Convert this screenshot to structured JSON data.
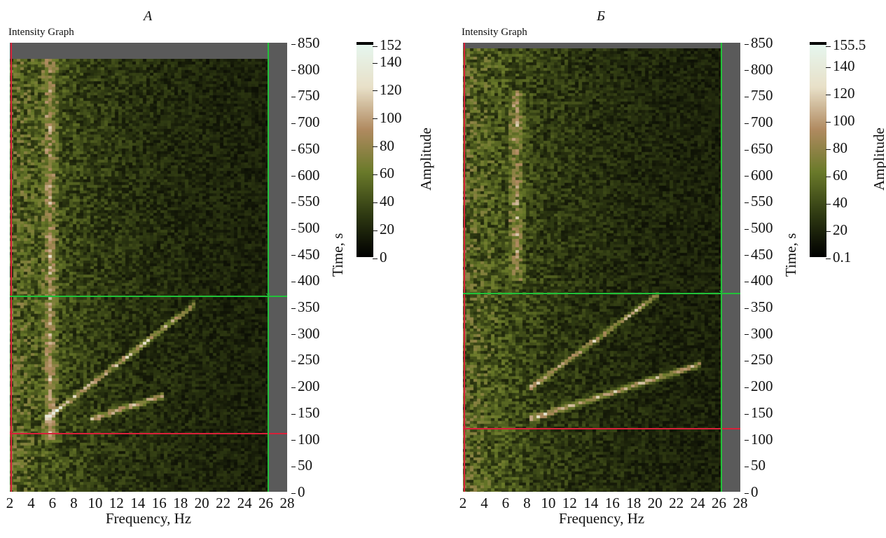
{
  "chart_data": [
    {
      "type": "heatmap",
      "panel_label": "А",
      "graph_label": "Intensity Graph",
      "xlabel": "Frequency, Hz",
      "ylabel": "Time, s",
      "colorbar_label": "Amplitude",
      "xlim": [
        2,
        28
      ],
      "ylim": [
        0,
        850
      ],
      "x_ticks": [
        "2",
        "4",
        "6",
        "8",
        "10",
        "12",
        "14",
        "16",
        "18",
        "20",
        "22",
        "24",
        "26",
        "28"
      ],
      "y_ticks": [
        "0",
        "50",
        "100",
        "150",
        "200",
        "250",
        "300",
        "350",
        "400",
        "450",
        "500",
        "550",
        "600",
        "650",
        "700",
        "750",
        "800",
        "850"
      ],
      "colorbar_min": 0,
      "colorbar_max": 152,
      "colorbar_ticks": [
        "152",
        "140",
        "120",
        "100",
        "80",
        "60",
        "40",
        "20",
        "0"
      ],
      "data_extent": {
        "x_max": 26.2,
        "y_max": 820
      },
      "cursors": [
        {
          "color": "#d8213a",
          "x": 2.1,
          "y": 110
        },
        {
          "color": "#22c23a",
          "x": 26.2,
          "y": 370
        }
      ],
      "features": [
        {
          "kind": "chirp",
          "x_start": 5.5,
          "y_start": 140,
          "x_end": 19,
          "y_end": 350
        },
        {
          "kind": "chirp",
          "x_start": 10,
          "y_start": 140,
          "x_end": 16,
          "y_end": 180
        },
        {
          "kind": "band",
          "x": 5.8,
          "y_from": 100,
          "y_to": 820
        }
      ]
    },
    {
      "type": "heatmap",
      "panel_label": "Б",
      "graph_label": "Intensity Graph",
      "xlabel": "Frequency, Hz",
      "ylabel": "Time, s",
      "colorbar_label": "Amplitude",
      "xlim": [
        2,
        28
      ],
      "ylim": [
        0,
        850
      ],
      "x_ticks": [
        "2",
        "4",
        "6",
        "8",
        "10",
        "12",
        "14",
        "16",
        "18",
        "20",
        "22",
        "24",
        "26",
        "28"
      ],
      "y_ticks": [
        "0",
        "50",
        "100",
        "150",
        "200",
        "250",
        "300",
        "350",
        "400",
        "450",
        "500",
        "550",
        "600",
        "650",
        "700",
        "750",
        "800",
        "850"
      ],
      "colorbar_min": 0.1,
      "colorbar_max": 155.5,
      "colorbar_ticks": [
        "155.5",
        "140",
        "120",
        "100",
        "80",
        "60",
        "40",
        "20",
        "0.1"
      ],
      "data_extent": {
        "x_max": 26.2,
        "y_max": 840
      },
      "cursors": [
        {
          "color": "#d8213a",
          "x": 2.1,
          "y": 120
        },
        {
          "color": "#22c23a",
          "x": 26.2,
          "y": 375
        }
      ],
      "features": [
        {
          "kind": "chirp",
          "x_start": 8.5,
          "y_start": 200,
          "x_end": 20,
          "y_end": 370
        },
        {
          "kind": "chirp",
          "x_start": 8.5,
          "y_start": 140,
          "x_end": 24,
          "y_end": 240
        },
        {
          "kind": "band",
          "x": 7,
          "y_from": 400,
          "y_to": 760
        }
      ]
    }
  ],
  "colors": {
    "colormap": [
      "#000000",
      "#2f3a12",
      "#6a7a2a",
      "#b08a60",
      "#e8e0c8",
      "#e6f6ee"
    ],
    "plot_background": "#151510",
    "cursor_red": "#d8213a",
    "cursor_green": "#22c23a"
  }
}
